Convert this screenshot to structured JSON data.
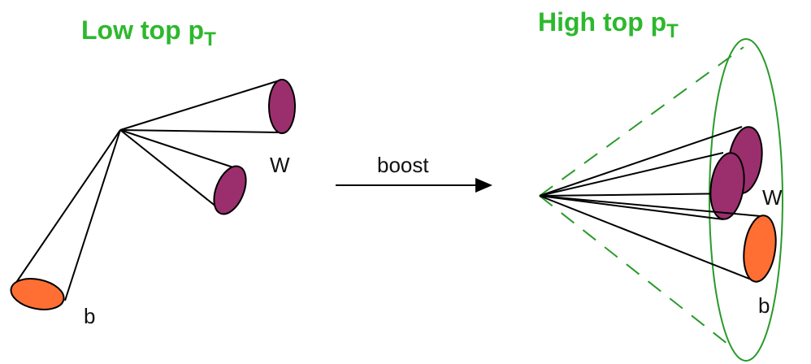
{
  "left_panel": {
    "title_main": "Low top p",
    "title_sub": "T",
    "label_w": "W",
    "label_b": "b"
  },
  "arrow": {
    "label": "boost"
  },
  "right_panel": {
    "title_main": "High top p",
    "title_sub": "T",
    "label_w": "W",
    "label_b": "b"
  },
  "colors": {
    "title": "#2db82d",
    "w_jet": "#9b2f6e",
    "b_jet": "#ff6f33",
    "fat_jet": "#2a9a2a",
    "line": "#000000"
  }
}
